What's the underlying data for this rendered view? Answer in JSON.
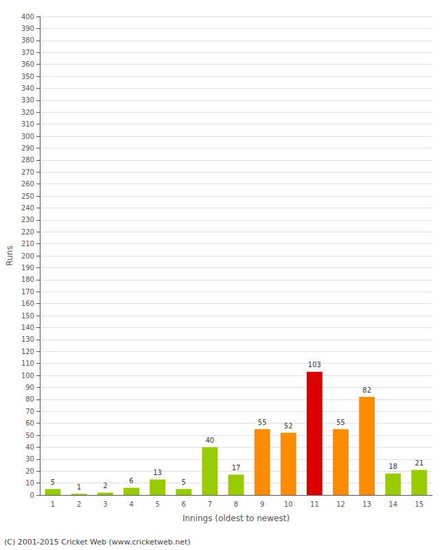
{
  "chart_data": {
    "type": "bar",
    "xlabel": "Innings (oldest to newest)",
    "ylabel": "Runs",
    "footer": "(C) 2001-2015 Cricket Web (www.cricketweb.net)",
    "categories": [
      "1",
      "2",
      "3",
      "4",
      "5",
      "6",
      "7",
      "8",
      "9",
      "10",
      "11",
      "12",
      "13",
      "14",
      "15"
    ],
    "values": [
      5,
      1,
      2,
      6,
      13,
      5,
      40,
      17,
      55,
      52,
      103,
      55,
      82,
      18,
      21
    ],
    "colors": [
      "#99CC00",
      "#99CC00",
      "#99CC00",
      "#99CC00",
      "#99CC00",
      "#99CC00",
      "#99CC00",
      "#99CC00",
      "#FF8C00",
      "#FF8C00",
      "#DD0000",
      "#FF8C00",
      "#FF8C00",
      "#99CC00",
      "#99CC00"
    ],
    "ylim": [
      0,
      400
    ],
    "yticks": [
      0,
      10,
      20,
      30,
      40,
      50,
      60,
      70,
      80,
      90,
      100,
      110,
      120,
      130,
      140,
      150,
      160,
      170,
      180,
      190,
      200,
      210,
      220,
      230,
      240,
      250,
      260,
      270,
      280,
      290,
      300,
      310,
      320,
      330,
      340,
      350,
      360,
      370,
      380,
      390,
      400
    ],
    "grid": true,
    "data_labels": true
  }
}
